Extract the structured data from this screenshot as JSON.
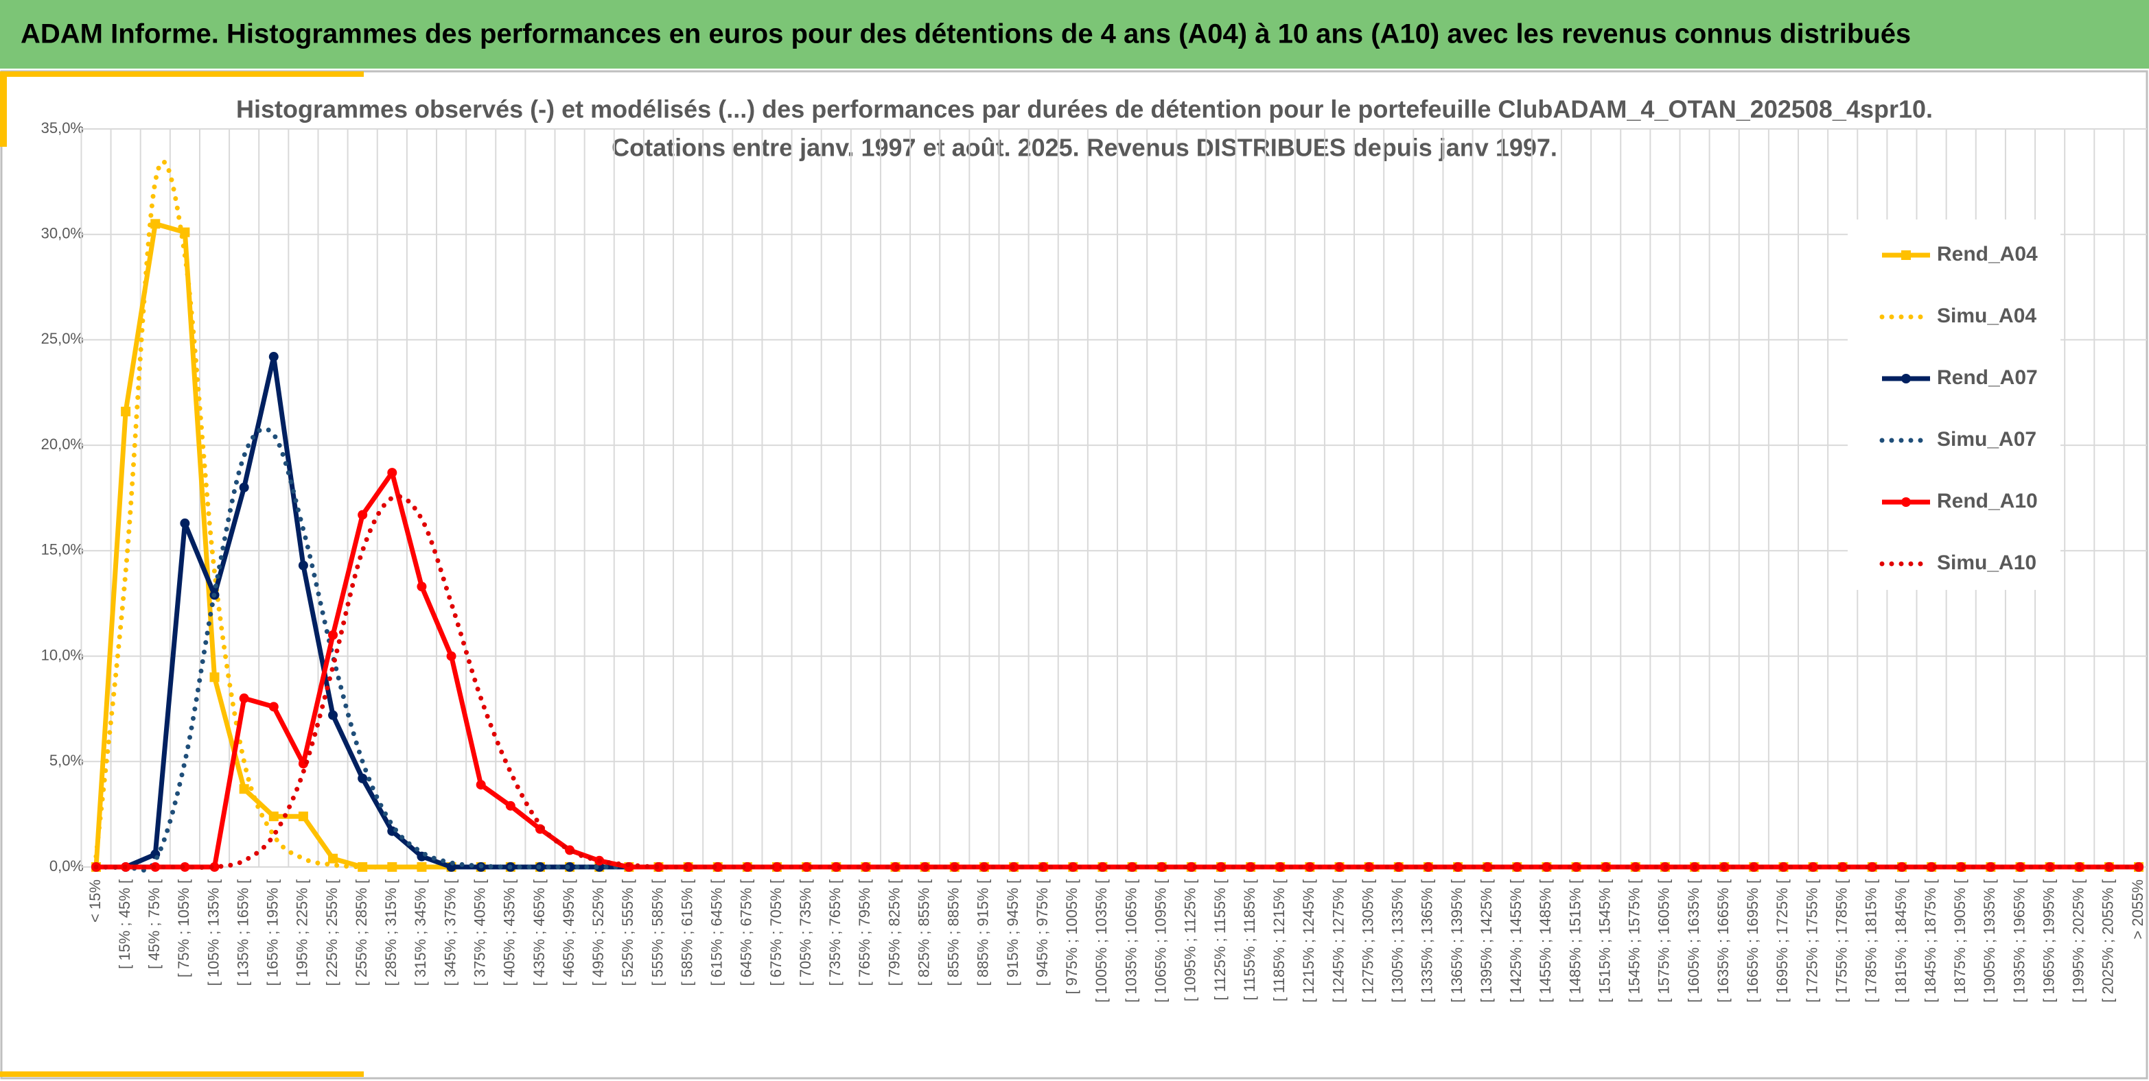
{
  "header": {
    "title": "ADAM Informe. Histogrammes des performances en euros pour des détentions de 4 ans (A04) à 10 ans (A10) avec les revenus connus distribués"
  },
  "chart_data": {
    "type": "line",
    "title": [
      "Histogrammes observés (-) et modélisés (...) des performances par durées de détention pour le portefeuille ClubADAM_4_OTAN_202508_4spr10.",
      "Cotations entre janv. 1997 et août. 2025. Revenus DISTRIBUES depuis janv 1997."
    ],
    "categories": [
      "< 15%",
      "[ 15% ; 45% [",
      "[ 45% ; 75% [",
      "[ 75% ; 105% [",
      "[ 105% ; 135% [",
      "[ 135% ; 165% [",
      "[ 165% ; 195% [",
      "[ 195% ; 225% [",
      "[ 225% ; 255% [",
      "[ 255% ; 285% [",
      "[ 285% ; 315% [",
      "[ 315% ; 345% [",
      "[ 345% ; 375% [",
      "[ 375% ; 405% [",
      "[ 405% ; 435% [",
      "[ 435% ; 465% [",
      "[ 465% ; 495% [",
      "[ 495% ; 525% [",
      "[ 525% ; 555% [",
      "[ 555% ; 585% [",
      "[ 585% ; 615% [",
      "[ 615% ; 645% [",
      "[ 645% ; 675% [",
      "[ 675% ; 705% [",
      "[ 705% ; 735% [",
      "[ 735% ; 765% [",
      "[ 765% ; 795% [",
      "[ 795% ; 825% [",
      "[ 825% ; 855% [",
      "[ 855% ; 885% [",
      "[ 885% ; 915% [",
      "[ 915% ; 945% [",
      "[ 945% ; 975% [",
      "[ 975% ; 1005% [",
      "[ 1005% ; 1035% [",
      "[ 1035% ; 1065% [",
      "[ 1065% ; 1095% [",
      "[ 1095% ; 1125% [",
      "[ 1125% ; 1155% [",
      "[ 1155% ; 1185% [",
      "[ 1185% ; 1215% [",
      "[ 1215% ; 1245% [",
      "[ 1245% ; 1275% [",
      "[ 1275% ; 1305% [",
      "[ 1305% ; 1335% [",
      "[ 1335% ; 1365% [",
      "[ 1365% ; 1395% [",
      "[ 1395% ; 1425% [",
      "[ 1425% ; 1455% [",
      "[ 1455% ; 1485% [",
      "[ 1485% ; 1515% [",
      "[ 1515% ; 1545% [",
      "[ 1545% ; 1575% [",
      "[ 1575% ; 1605% [",
      "[ 1605% ; 1635% [",
      "[ 1635% ; 1665% [",
      "[ 1665% ; 1695% [",
      "[ 1695% ; 1725% [",
      "[ 1725% ; 1755% [",
      "[ 1755% ; 1785% [",
      "[ 1785% ; 1815% [",
      "[ 1815% ; 1845% [",
      "[ 1845% ; 1875% [",
      "[ 1875% ; 1905% [",
      "[ 1905% ; 1935% [",
      "[ 1935% ; 1965% [",
      "[ 1965% ; 1995% [",
      "[ 1995% ; 2025% [",
      "[ 2025% ; 2055% [",
      "> 2055%"
    ],
    "series": [
      {
        "name": "Rend_A04",
        "color": "#ffc000",
        "style": "solid",
        "marker": "square",
        "smooth": false,
        "values": [
          0,
          21.6,
          30.5,
          30.1,
          9.0,
          3.7,
          2.4,
          2.4,
          0.4,
          0,
          0,
          0,
          0,
          0,
          0,
          0,
          0,
          0,
          0,
          0,
          0,
          0,
          0,
          0,
          0,
          0,
          0,
          0,
          0,
          0,
          0,
          0,
          0,
          0,
          0,
          0,
          0,
          0,
          0,
          0,
          0,
          0,
          0,
          0,
          0,
          0,
          0,
          0,
          0,
          0,
          0,
          0,
          0,
          0,
          0,
          0,
          0,
          0,
          0,
          0,
          0,
          0,
          0,
          0,
          0,
          0,
          0,
          0,
          0,
          0
        ]
      },
      {
        "name": "Simu_A04",
        "color": "#ffc000",
        "style": "dotted",
        "marker": "none",
        "smooth": true,
        "values": [
          0.5,
          14,
          32.5,
          29,
          14,
          5,
          1.5,
          0.4,
          0.1,
          0,
          0,
          0,
          0,
          0,
          0,
          0,
          0,
          0,
          0,
          0,
          0,
          0,
          0,
          0,
          0,
          0,
          0,
          0,
          0,
          0,
          0,
          0,
          0,
          0,
          0,
          0,
          0,
          0,
          0,
          0,
          0,
          0,
          0,
          0,
          0,
          0,
          0,
          0,
          0,
          0,
          0,
          0,
          0,
          0,
          0,
          0,
          0,
          0,
          0,
          0,
          0,
          0,
          0,
          0,
          0,
          0,
          0,
          0,
          0,
          0
        ]
      },
      {
        "name": "Rend_A07",
        "color": "#002060",
        "style": "solid",
        "marker": "circle",
        "smooth": false,
        "values": [
          0,
          0,
          0.6,
          16.3,
          12.9,
          18.0,
          24.2,
          14.3,
          7.2,
          4.2,
          1.7,
          0.5,
          0,
          0,
          0,
          0,
          0,
          0,
          0,
          0,
          0,
          0,
          0,
          0,
          0,
          0,
          0,
          0,
          0,
          0,
          0,
          0,
          0,
          0,
          0,
          0,
          0,
          0,
          0,
          0,
          0,
          0,
          0,
          0,
          0,
          0,
          0,
          0,
          0,
          0,
          0,
          0,
          0,
          0,
          0,
          0,
          0,
          0,
          0,
          0,
          0,
          0,
          0,
          0,
          0,
          0,
          0,
          0,
          0,
          0
        ]
      },
      {
        "name": "Simu_A07",
        "color": "#1f4e79",
        "style": "dotted",
        "marker": "none",
        "smooth": true,
        "values": [
          0,
          0,
          0.3,
          5,
          13,
          19.5,
          20.5,
          16,
          10,
          5,
          2,
          0.7,
          0.2,
          0.05,
          0,
          0,
          0,
          0,
          0,
          0,
          0,
          0,
          0,
          0,
          0,
          0,
          0,
          0,
          0,
          0,
          0,
          0,
          0,
          0,
          0,
          0,
          0,
          0,
          0,
          0,
          0,
          0,
          0,
          0,
          0,
          0,
          0,
          0,
          0,
          0,
          0,
          0,
          0,
          0,
          0,
          0,
          0,
          0,
          0,
          0,
          0,
          0,
          0,
          0,
          0,
          0,
          0,
          0,
          0,
          0
        ]
      },
      {
        "name": "Rend_A10",
        "color": "#ff0000",
        "style": "solid",
        "marker": "circle",
        "smooth": false,
        "values": [
          0,
          0,
          0,
          0,
          0,
          8.0,
          7.6,
          4.9,
          11.0,
          16.7,
          18.7,
          13.3,
          10.0,
          3.9,
          2.9,
          1.8,
          0.8,
          0.3,
          0,
          0,
          0,
          0,
          0,
          0,
          0,
          0,
          0,
          0,
          0,
          0,
          0,
          0,
          0,
          0,
          0,
          0,
          0,
          0,
          0,
          0,
          0,
          0,
          0,
          0,
          0,
          0,
          0,
          0,
          0,
          0,
          0,
          0,
          0,
          0,
          0,
          0,
          0,
          0,
          0,
          0,
          0,
          0,
          0,
          0,
          0,
          0,
          0,
          0,
          0,
          0
        ]
      },
      {
        "name": "Simu_A10",
        "color": "#e00000",
        "style": "dotted",
        "marker": "none",
        "smooth": true,
        "values": [
          0,
          0,
          0,
          0,
          0,
          0.3,
          1.5,
          4.5,
          9.5,
          15,
          17.5,
          16.5,
          12.5,
          8,
          4.5,
          2,
          0.8,
          0.3,
          0.1,
          0,
          0,
          0,
          0,
          0,
          0,
          0,
          0,
          0,
          0,
          0,
          0,
          0,
          0,
          0,
          0,
          0,
          0,
          0,
          0,
          0,
          0,
          0,
          0,
          0,
          0,
          0,
          0,
          0,
          0,
          0,
          0,
          0,
          0,
          0,
          0,
          0,
          0,
          0,
          0,
          0,
          0,
          0,
          0,
          0,
          0,
          0,
          0,
          0,
          0,
          0
        ]
      }
    ],
    "ylim": [
      0,
      35
    ],
    "yticks": [
      {
        "value": 0,
        "label": "0,0%"
      },
      {
        "value": 5,
        "label": "5,0%"
      },
      {
        "value": 10,
        "label": "10,0%"
      },
      {
        "value": 15,
        "label": "15,0%"
      },
      {
        "value": 20,
        "label": "20,0%"
      },
      {
        "value": 25,
        "label": "25,0%"
      },
      {
        "value": 30,
        "label": "30,0%"
      },
      {
        "value": 35,
        "label": "35,0%"
      }
    ],
    "grid": true,
    "legend": "right"
  }
}
